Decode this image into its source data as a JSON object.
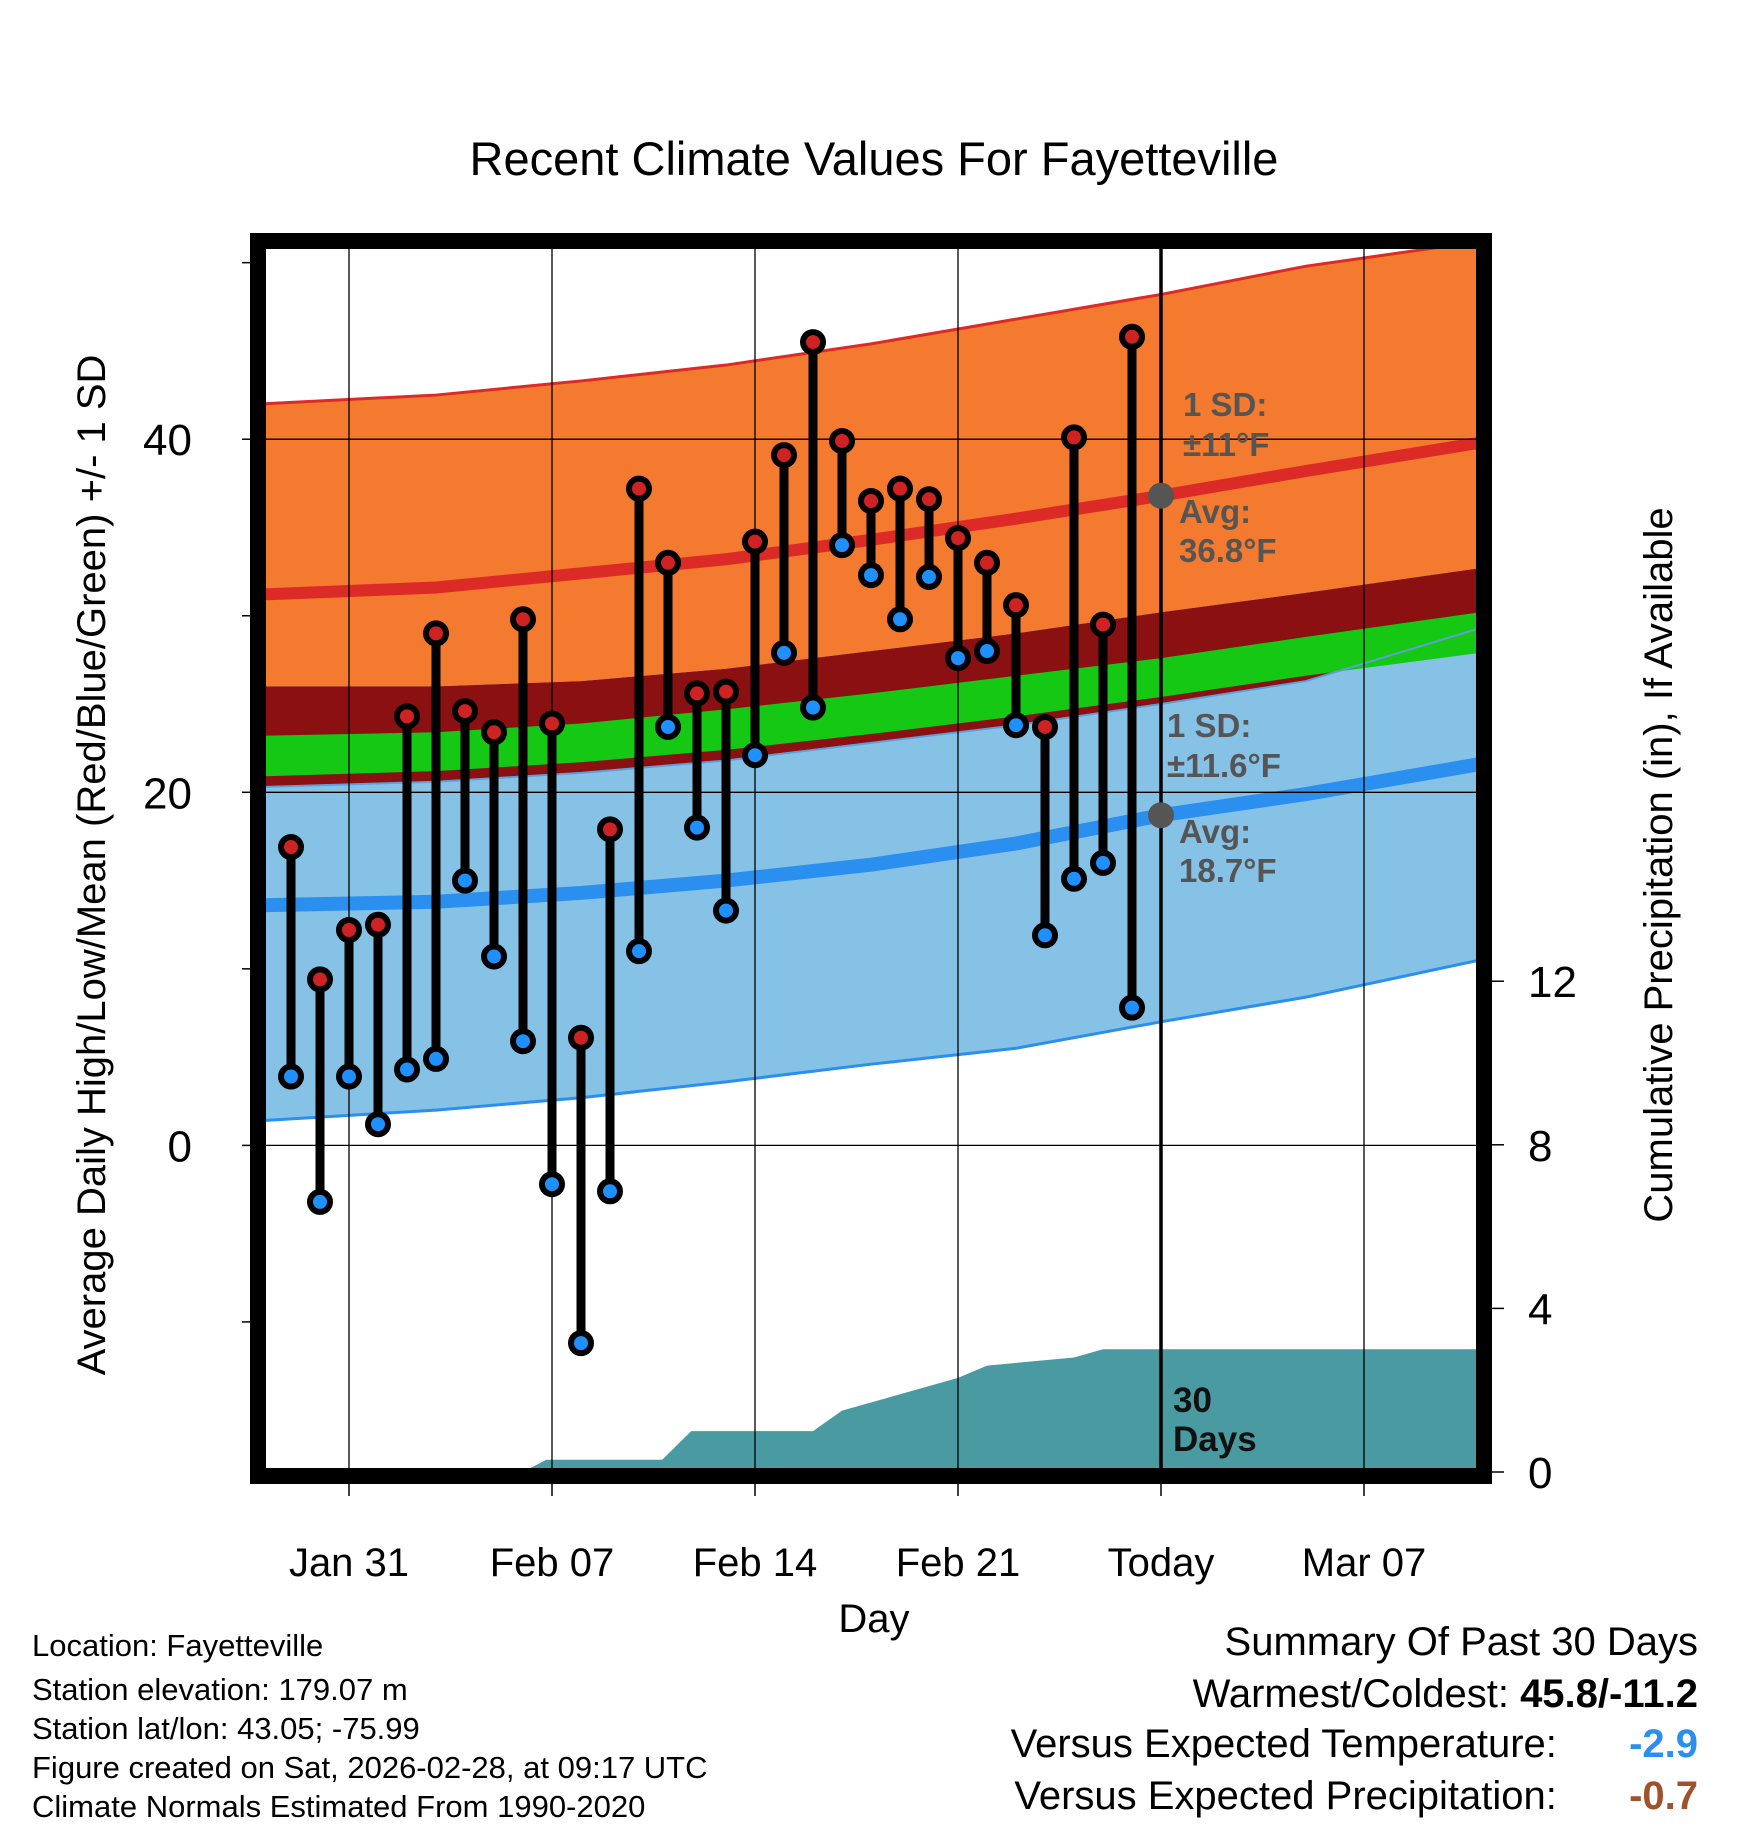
{
  "chart_data": {
    "type": "line",
    "title": "Recent Climate Values For Fayetteville",
    "xlabel": "Day",
    "ylabel": "Average Daily High/Low/Mean (Red/Blue/Green) +/- 1 SD",
    "y2label": "Cumulative Precipitation (in), If Available",
    "x_start_day": -1,
    "x_end_day": 41,
    "ylim": [
      -18.5,
      51
    ],
    "y2lim": [
      0,
      30
    ],
    "yticks": [
      0,
      20,
      40
    ],
    "y2ticks": [
      0,
      4,
      8,
      12
    ],
    "today_day": 30,
    "xticks": [
      {
        "day": 2,
        "label": "Jan 31"
      },
      {
        "day": 9,
        "label": "Feb 07"
      },
      {
        "day": 16,
        "label": "Feb 14"
      },
      {
        "day": 23,
        "label": "Feb 21"
      },
      {
        "day": 30,
        "label": "Today"
      },
      {
        "day": 37,
        "label": "Mar 07"
      }
    ],
    "normals": {
      "days": [
        -1,
        5,
        10,
        15,
        20,
        25,
        30,
        35,
        41
      ],
      "high_upper": [
        42.0,
        42.5,
        43.3,
        44.2,
        45.4,
        46.8,
        48.2,
        49.8,
        51.2
      ],
      "high_avg": [
        31.2,
        31.6,
        32.4,
        33.2,
        34.3,
        35.5,
        36.8,
        38.2,
        39.8
      ],
      "high_lower": [
        26.0,
        26.0,
        26.3,
        27.0,
        28.0,
        29.0,
        30.2,
        31.3,
        32.7
      ],
      "mean_upper": [
        23.2,
        23.4,
        23.9,
        24.7,
        25.6,
        26.6,
        27.6,
        28.8,
        30.2
      ],
      "mean": [
        22.0,
        22.4,
        22.9,
        23.6,
        24.5,
        25.5,
        26.6,
        27.8,
        29.2
      ],
      "mean_lower": [
        20.9,
        21.2,
        21.7,
        22.4,
        23.3,
        24.3,
        25.4,
        26.6,
        27.9
      ],
      "low_upper": [
        20.3,
        20.6,
        21.1,
        21.8,
        22.8,
        23.8,
        25.0,
        26.3,
        29.3
      ],
      "low_avg": [
        13.6,
        13.8,
        14.3,
        15.0,
        15.9,
        17.1,
        18.7,
        19.9,
        21.6
      ],
      "low_lower": [
        1.4,
        2.0,
        2.7,
        3.6,
        4.6,
        5.5,
        7.0,
        8.4,
        10.5
      ]
    },
    "series": [
      {
        "name": "Daily High",
        "values": [
          16.9,
          9.4,
          12.2,
          12.5,
          24.3,
          29.0,
          24.6,
          23.4,
          29.8,
          23.9,
          6.1,
          17.9,
          37.2,
          33.0,
          25.6,
          25.7,
          34.2,
          39.1,
          45.5,
          39.9,
          36.5,
          37.2,
          36.6,
          34.4,
          33.0,
          30.6,
          23.7,
          40.1,
          29.5,
          45.8
        ]
      },
      {
        "name": "Daily Low",
        "values": [
          3.9,
          -3.2,
          3.9,
          1.2,
          4.3,
          4.9,
          15.0,
          10.7,
          5.9,
          -2.2,
          -11.2,
          -2.6,
          11.0,
          23.7,
          18.0,
          13.3,
          22.1,
          27.9,
          24.8,
          34.0,
          32.3,
          29.8,
          32.2,
          27.6,
          28.0,
          23.8,
          11.9,
          15.1,
          16.0,
          7.8
        ]
      }
    ],
    "precip_days": [
      -1,
      8,
      8.8,
      12.8,
      13.8,
      18,
      19,
      23,
      24,
      27,
      28,
      41
    ],
    "precip_cum": [
      0,
      0,
      0.3,
      0.3,
      1.0,
      1.0,
      1.5,
      2.3,
      2.6,
      2.8,
      3.0,
      3.0
    ],
    "annotations": {
      "high_sd": "1 SD:",
      "high_sd_val": "±11°F",
      "high_avg_label": "Avg:",
      "high_avg_val": "36.8°F",
      "low_sd": "1 SD:",
      "low_sd_val": "±11.6°F",
      "low_avg_label": "Avg:",
      "low_avg_val": "18.7°F",
      "precip_label_1": "30",
      "precip_label_2": "Days"
    },
    "colors": {
      "high_band": "#f37a2e",
      "high_avg": "#dc2b27",
      "mean_band": "#8b1012",
      "mean_line": "#14c814",
      "low_band": "#86c2e6",
      "low_avg": "#2b8ff0",
      "precip": "#4a9aa2",
      "high_dot": "#cf2222",
      "low_dot": "#1e90ff",
      "annot": "#555555"
    }
  },
  "info": {
    "location": "Location: Fayetteville",
    "elevation": "Station elevation: 179.07 m",
    "latlon": "Station lat/lon: 43.05; -75.99",
    "created": "Figure created on Sat, 2026-02-28, at 09:17 UTC",
    "normals": "Climate Normals Estimated From 1990-2020"
  },
  "summary": {
    "title": "Summary Of Past 30 Days",
    "warm_label": "Warmest/Coldest:",
    "warm_value": "45.8/-11.2",
    "temp_label": "Versus Expected Temperature:",
    "temp_value": "-2.9",
    "temp_color": "#2b8ff0",
    "precip_label": "Versus Expected Precipitation:",
    "precip_value": "-0.7",
    "precip_color": "#a0522d"
  }
}
